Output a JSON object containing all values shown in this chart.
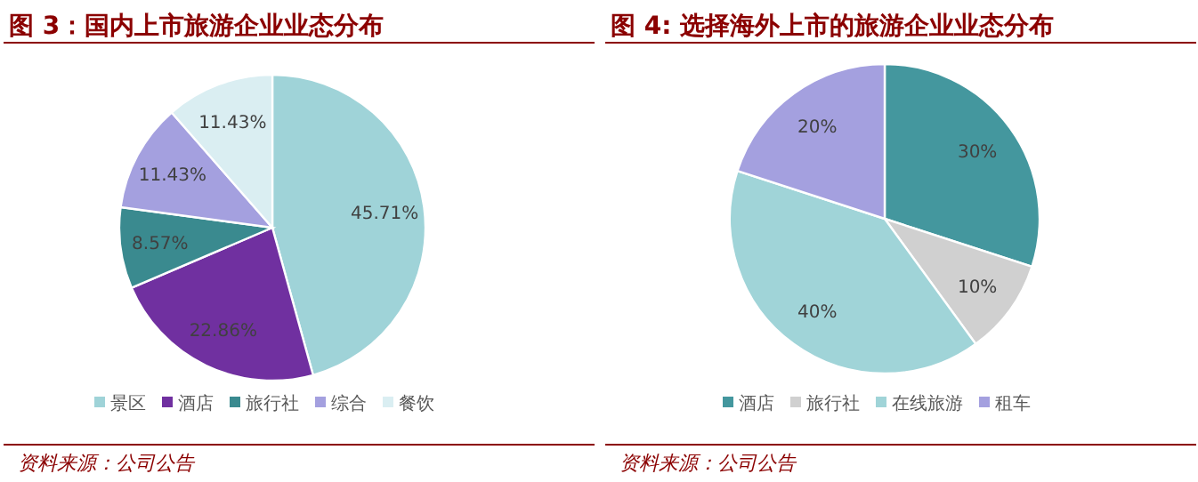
{
  "chart_data": [
    {
      "type": "pie",
      "title": "图 3：国内上市旅游企业业态分布",
      "categories": [
        "景区",
        "酒店",
        "旅行社",
        "综合",
        "餐饮"
      ],
      "values": [
        45.71,
        22.86,
        8.57,
        11.43,
        11.43
      ],
      "value_labels": [
        "45.71%",
        "22.86%",
        "8.57%",
        "11.43%",
        "11.43%"
      ],
      "colors": [
        "#9fd3d8",
        "#7030a0",
        "#3a8a8f",
        "#a4a0df",
        "#daeef2"
      ],
      "legend": "bottom",
      "annotations": [
        "资料来源：公司公告"
      ]
    },
    {
      "type": "pie",
      "title": "图 4: 选择海外上市的旅游企业业态分布",
      "categories": [
        "酒店",
        "旅行社",
        "在线旅游",
        "租车"
      ],
      "values": [
        30,
        10,
        40,
        20
      ],
      "value_labels": [
        "30%",
        "10%",
        "40%",
        "20%"
      ],
      "colors": [
        "#44979e",
        "#d0d0d0",
        "#a0d4d8",
        "#a4a0df"
      ],
      "legend": "bottom",
      "annotations": [
        "资料来源：公司公告"
      ]
    }
  ]
}
